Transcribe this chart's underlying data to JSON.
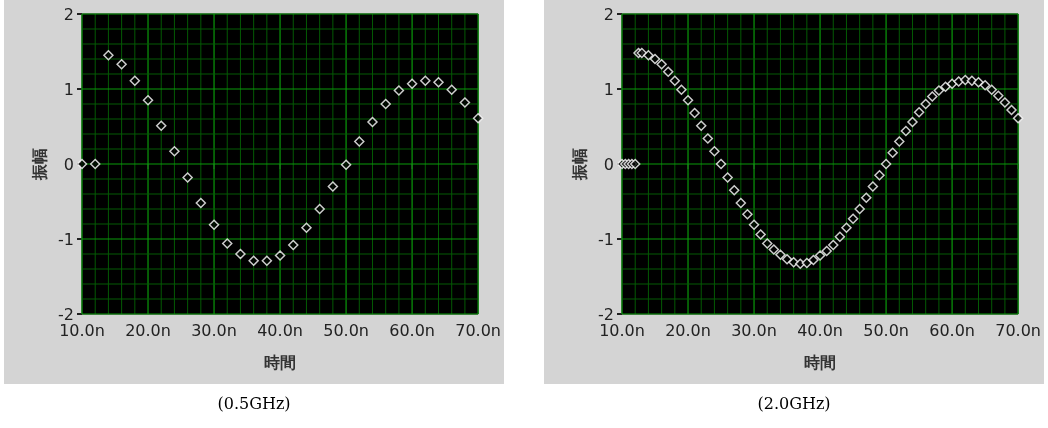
{
  "chart_data": [
    {
      "type": "scatter",
      "xlabel": "時間",
      "ylabel": "振幅",
      "annotations": [
        "(0.5GHz)"
      ],
      "grid": true,
      "marker": "diamond",
      "xlim": [
        10,
        70
      ],
      "xticks": [
        {
          "value": 10,
          "label": "10.0n"
        },
        {
          "value": 12,
          "label": null
        },
        {
          "value": 14,
          "label": null
        },
        {
          "value": 16,
          "label": null
        },
        {
          "value": 18,
          "label": null
        },
        {
          "value": 20,
          "label": "20.0n"
        },
        {
          "value": 22,
          "label": null
        },
        {
          "value": 24,
          "label": null
        },
        {
          "value": 26,
          "label": null
        },
        {
          "value": 28,
          "label": null
        },
        {
          "value": 30,
          "label": "30.0n"
        },
        {
          "value": 32,
          "label": null
        },
        {
          "value": 34,
          "label": null
        },
        {
          "value": 36,
          "label": null
        },
        {
          "value": 38,
          "label": null
        },
        {
          "value": 40,
          "label": "40.0n"
        },
        {
          "value": 42,
          "label": null
        },
        {
          "value": 44,
          "label": null
        },
        {
          "value": 46,
          "label": null
        },
        {
          "value": 48,
          "label": null
        },
        {
          "value": 50,
          "label": "50.0n"
        },
        {
          "value": 52,
          "label": null
        },
        {
          "value": 54,
          "label": null
        },
        {
          "value": 56,
          "label": null
        },
        {
          "value": 58,
          "label": null
        },
        {
          "value": 60,
          "label": "60.0n"
        },
        {
          "value": 62,
          "label": null
        },
        {
          "value": 64,
          "label": null
        },
        {
          "value": 66,
          "label": null
        },
        {
          "value": 68,
          "label": null
        },
        {
          "value": 70,
          "label": "70.0n"
        }
      ],
      "ylim": [
        -2,
        2
      ],
      "yticks": [
        -2,
        {
          "value": -1.8,
          "label": null
        },
        {
          "value": -1.6,
          "label": null
        },
        {
          "value": -1.4,
          "label": null
        },
        {
          "value": -1.2,
          "label": null
        },
        -1,
        {
          "value": -0.8,
          "label": null
        },
        {
          "value": -0.6,
          "label": null
        },
        {
          "value": -0.4,
          "label": null
        },
        {
          "value": -0.2,
          "label": null
        },
        0,
        {
          "value": 0.2,
          "label": null
        },
        {
          "value": 0.4,
          "label": null
        },
        {
          "value": 0.6,
          "label": null
        },
        {
          "value": 0.8,
          "label": null
        },
        1,
        {
          "value": 1.2,
          "label": null
        },
        {
          "value": 1.4,
          "label": null
        },
        {
          "value": 1.6,
          "label": null
        },
        {
          "value": 1.8,
          "label": null
        },
        2
      ],
      "x": [
        10,
        12,
        14,
        16,
        18,
        20,
        22,
        24,
        26,
        28,
        30,
        32,
        34,
        36,
        38,
        40,
        42,
        44,
        46,
        48,
        50,
        52,
        54,
        56,
        58,
        60,
        62,
        64,
        66,
        68,
        70
      ],
      "series": [
        {
          "color": "#ffffff",
          "values": [
            0,
            0,
            1.45,
            1.33,
            1.11,
            0.85,
            0.51,
            0.17,
            -0.18,
            -0.52,
            -0.81,
            -1.06,
            -1.2,
            -1.29,
            -1.29,
            -1.22,
            -1.08,
            -0.85,
            -0.6,
            -0.3,
            -0.01,
            0.3,
            0.56,
            0.8,
            0.98,
            1.07,
            1.11,
            1.09,
            0.99,
            0.82,
            0.61
          ]
        }
      ]
    },
    {
      "type": "scatter",
      "xlabel": "時間",
      "ylabel": "振幅",
      "annotations": [
        "(2.0GHz)"
      ],
      "grid": true,
      "marker": "diamond",
      "xlim": [
        10,
        70
      ],
      "xticks": [
        {
          "value": 10,
          "label": "10.0n"
        },
        {
          "value": 12,
          "label": null
        },
        {
          "value": 14,
          "label": null
        },
        {
          "value": 16,
          "label": null
        },
        {
          "value": 18,
          "label": null
        },
        {
          "value": 20,
          "label": "20.0n"
        },
        {
          "value": 22,
          "label": null
        },
        {
          "value": 24,
          "label": null
        },
        {
          "value": 26,
          "label": null
        },
        {
          "value": 28,
          "label": null
        },
        {
          "value": 30,
          "label": "30.0n"
        },
        {
          "value": 32,
          "label": null
        },
        {
          "value": 34,
          "label": null
        },
        {
          "value": 36,
          "label": null
        },
        {
          "value": 38,
          "label": null
        },
        {
          "value": 40,
          "label": "40.0n"
        },
        {
          "value": 42,
          "label": null
        },
        {
          "value": 44,
          "label": null
        },
        {
          "value": 46,
          "label": null
        },
        {
          "value": 48,
          "label": null
        },
        {
          "value": 50,
          "label": "50.0n"
        },
        {
          "value": 52,
          "label": null
        },
        {
          "value": 54,
          "label": null
        },
        {
          "value": 56,
          "label": null
        },
        {
          "value": 58,
          "label": null
        },
        {
          "value": 60,
          "label": "60.0n"
        },
        {
          "value": 62,
          "label": null
        },
        {
          "value": 64,
          "label": null
        },
        {
          "value": 66,
          "label": null
        },
        {
          "value": 68,
          "label": null
        },
        {
          "value": 70,
          "label": "70.0n"
        }
      ],
      "ylim": [
        -2,
        2
      ],
      "yticks": [
        -2,
        {
          "value": -1.8,
          "label": null
        },
        {
          "value": -1.6,
          "label": null
        },
        {
          "value": -1.4,
          "label": null
        },
        {
          "value": -1.2,
          "label": null
        },
        -1,
        {
          "value": -0.8,
          "label": null
        },
        {
          "value": -0.6,
          "label": null
        },
        {
          "value": -0.4,
          "label": null
        },
        {
          "value": -0.2,
          "label": null
        },
        0,
        {
          "value": 0.2,
          "label": null
        },
        {
          "value": 0.4,
          "label": null
        },
        {
          "value": 0.6,
          "label": null
        },
        {
          "value": 0.8,
          "label": null
        },
        1,
        {
          "value": 1.2,
          "label": null
        },
        {
          "value": 1.4,
          "label": null
        },
        {
          "value": 1.6,
          "label": null
        },
        {
          "value": 1.8,
          "label": null
        },
        2
      ],
      "x": [
        10,
        10.5,
        11,
        11.5,
        12,
        12.5,
        13,
        14,
        15,
        16,
        17,
        18,
        19,
        20,
        21,
        22,
        23,
        24,
        25,
        26,
        27,
        28,
        29,
        30,
        31,
        32,
        33,
        34,
        35,
        36,
        37,
        38,
        39,
        40,
        41,
        42,
        43,
        44,
        45,
        46,
        47,
        48,
        49,
        50,
        51,
        52,
        53,
        54,
        55,
        56,
        57,
        58,
        59,
        60,
        61,
        62,
        63,
        64,
        65,
        66,
        67,
        68,
        69,
        70
      ],
      "series": [
        {
          "color": "#ffffff",
          "values": [
            0,
            0,
            0,
            0,
            0,
            1.48,
            1.48,
            1.45,
            1.4,
            1.33,
            1.23,
            1.11,
            0.99,
            0.85,
            0.68,
            0.51,
            0.34,
            0.17,
            0,
            -0.18,
            -0.35,
            -0.52,
            -0.67,
            -0.81,
            -0.94,
            -1.06,
            -1.14,
            -1.21,
            -1.27,
            -1.31,
            -1.33,
            -1.32,
            -1.28,
            -1.22,
            -1.16,
            -1.08,
            -0.97,
            -0.85,
            -0.73,
            -0.6,
            -0.45,
            -0.3,
            -0.15,
            0,
            0.15,
            0.3,
            0.44,
            0.56,
            0.69,
            0.8,
            0.9,
            0.98,
            1.03,
            1.07,
            1.1,
            1.12,
            1.11,
            1.09,
            1.05,
            0.99,
            0.91,
            0.82,
            0.72,
            0.61
          ]
        }
      ]
    }
  ]
}
